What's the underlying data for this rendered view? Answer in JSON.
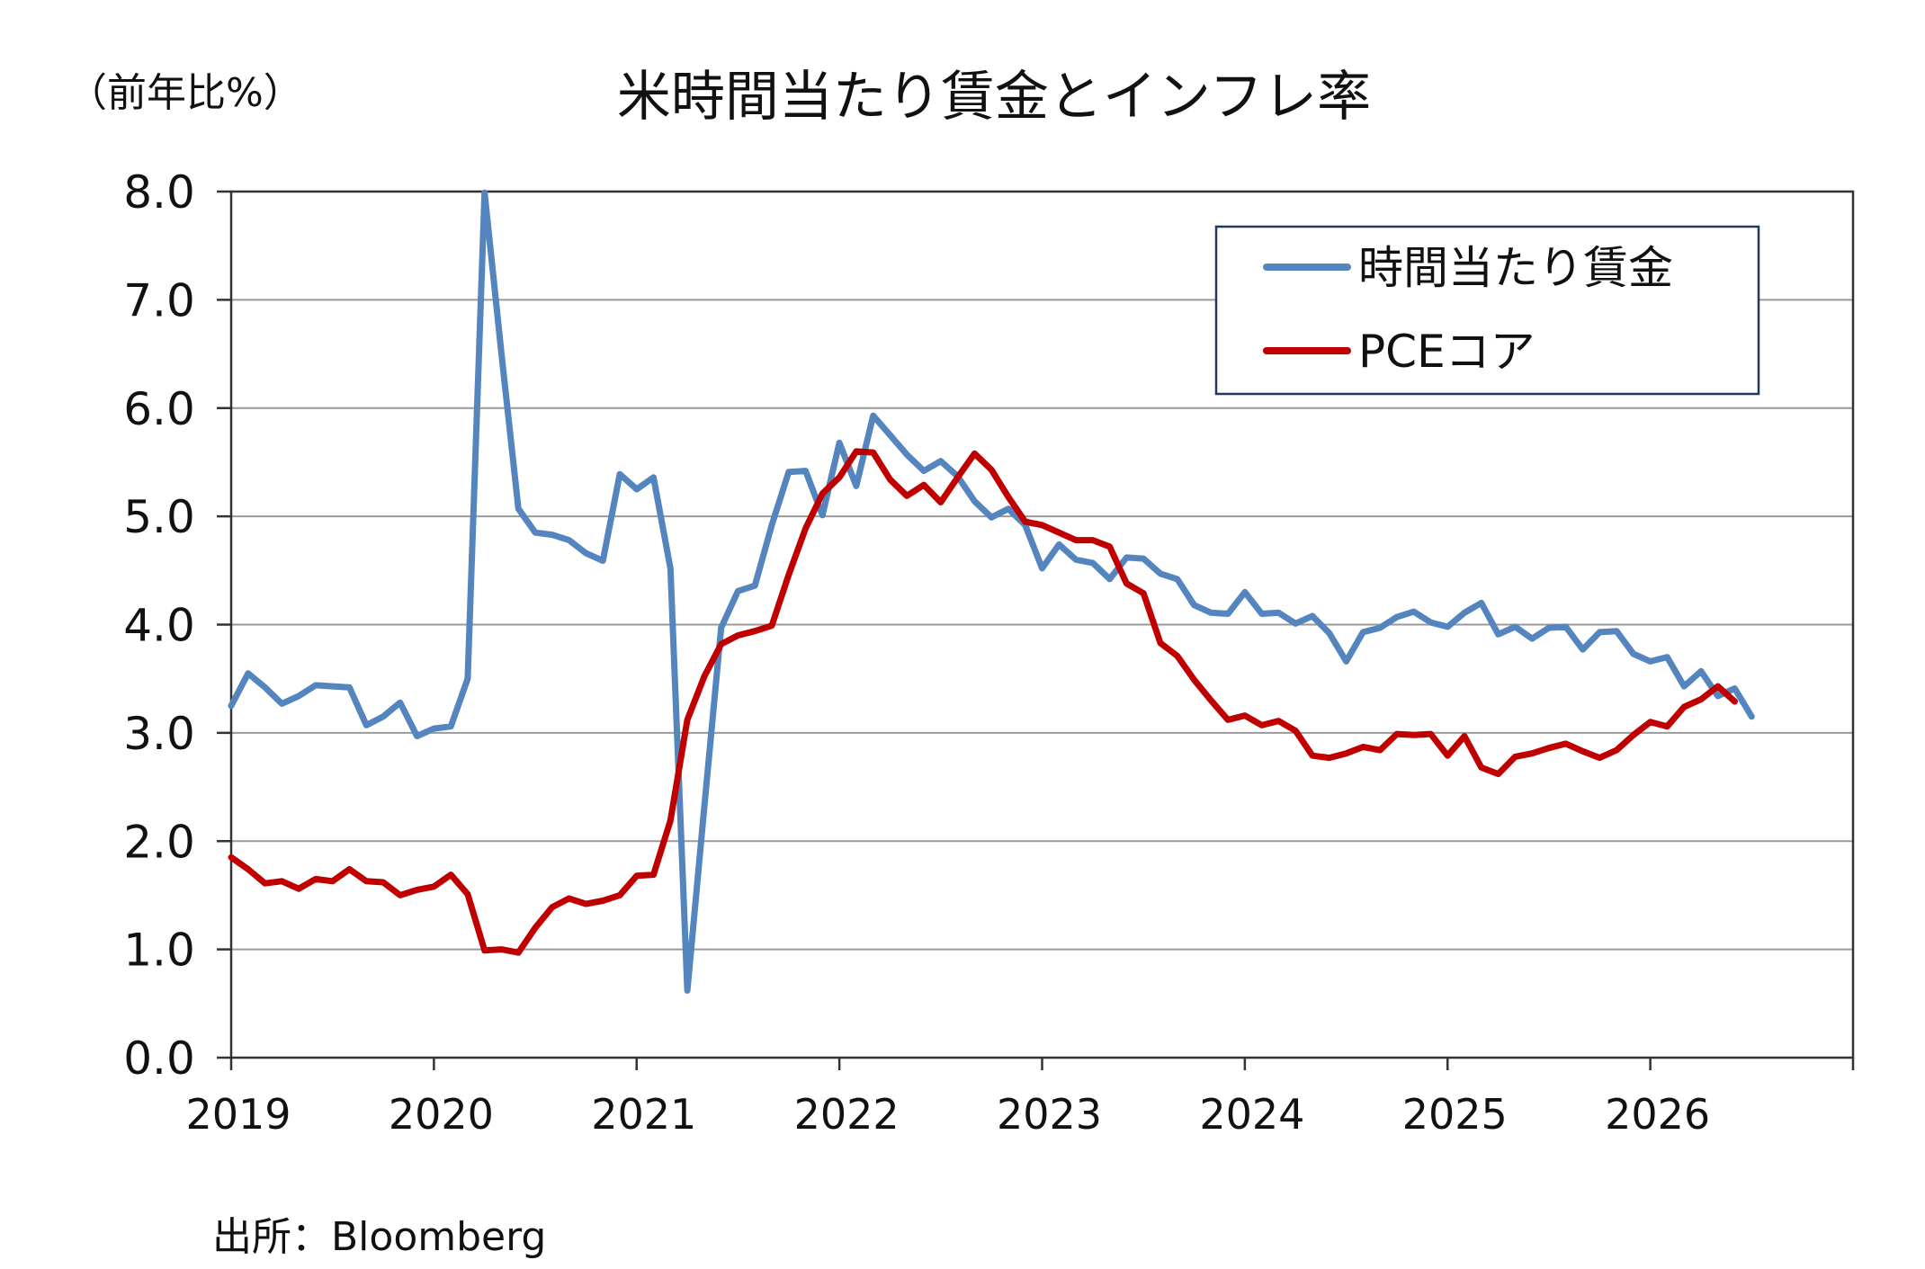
{
  "unit_label": "（前年比%）",
  "source": "出所：Bloomberg",
  "chart_data": {
    "type": "line",
    "title": "米時間当たり賃金とインフレ率",
    "ylim": [
      0,
      8
    ],
    "yticks": [
      "8.0",
      "7.0",
      "6.0",
      "5.0",
      "4.0",
      "3.0",
      "2.0",
      "1.0",
      "0.0"
    ],
    "xticks": [
      "2019",
      "2020",
      "2021",
      "2022",
      "2023",
      "2024",
      "2025",
      "2026"
    ],
    "xlim": [
      2019.0,
      2027.0
    ],
    "grid": true,
    "legend_position": "top-right",
    "series": [
      {
        "name": "時間当たり賃金",
        "color": "#5585be",
        "x_start": 2019.0,
        "x_step_months": 1,
        "values": [
          3.25,
          3.55,
          3.42,
          3.27,
          3.34,
          3.44,
          3.43,
          3.42,
          3.07,
          3.15,
          3.28,
          2.97,
          3.04,
          3.06,
          3.5,
          7.99,
          6.5,
          5.07,
          4.85,
          4.83,
          4.78,
          4.66,
          4.59,
          5.39,
          5.25,
          5.36,
          4.52,
          0.62,
          2.31,
          3.97,
          4.31,
          4.36,
          4.92,
          5.41,
          5.42,
          5.01,
          5.68,
          5.28,
          5.93,
          5.75,
          5.57,
          5.42,
          5.51,
          5.37,
          5.14,
          4.99,
          5.07,
          4.92,
          4.52,
          4.74,
          4.6,
          4.57,
          4.42,
          4.62,
          4.61,
          4.47,
          4.42,
          4.18,
          4.11,
          4.1,
          4.3,
          4.1,
          4.11,
          4.01,
          4.08,
          3.92,
          3.66,
          3.93,
          3.97,
          4.07,
          4.12,
          4.02,
          3.98,
          4.11,
          4.2,
          3.91,
          3.98,
          3.87,
          3.97,
          3.98,
          3.77,
          3.93,
          3.94,
          3.73,
          3.66,
          3.7,
          3.43,
          3.57,
          3.34,
          3.41,
          3.15
        ]
      },
      {
        "name": "PCEコア",
        "color": "#c00000",
        "x_start": 2019.0,
        "x_step_months": 1,
        "values": [
          1.85,
          1.74,
          1.61,
          1.63,
          1.56,
          1.65,
          1.63,
          1.74,
          1.63,
          1.62,
          1.5,
          1.55,
          1.58,
          1.69,
          1.51,
          0.99,
          1.0,
          0.97,
          1.2,
          1.39,
          1.47,
          1.42,
          1.45,
          1.5,
          1.68,
          1.69,
          2.19,
          3.12,
          3.52,
          3.82,
          3.9,
          3.94,
          3.99,
          4.46,
          4.89,
          5.21,
          5.36,
          5.6,
          5.59,
          5.34,
          5.19,
          5.29,
          5.13,
          5.36,
          5.58,
          5.43,
          5.18,
          4.95,
          4.92,
          4.85,
          4.78,
          4.78,
          4.72,
          4.38,
          4.29,
          3.83,
          3.71,
          3.49,
          3.3,
          3.12,
          3.16,
          3.07,
          3.11,
          3.02,
          2.79,
          2.77,
          2.81,
          2.87,
          2.84,
          2.99,
          2.98,
          2.99,
          2.79,
          2.97,
          2.68,
          2.62,
          2.78,
          2.81,
          2.86,
          2.9,
          2.83,
          2.77,
          2.84,
          2.98,
          3.1,
          3.06,
          3.24,
          3.31,
          3.43,
          3.29
        ]
      }
    ]
  }
}
